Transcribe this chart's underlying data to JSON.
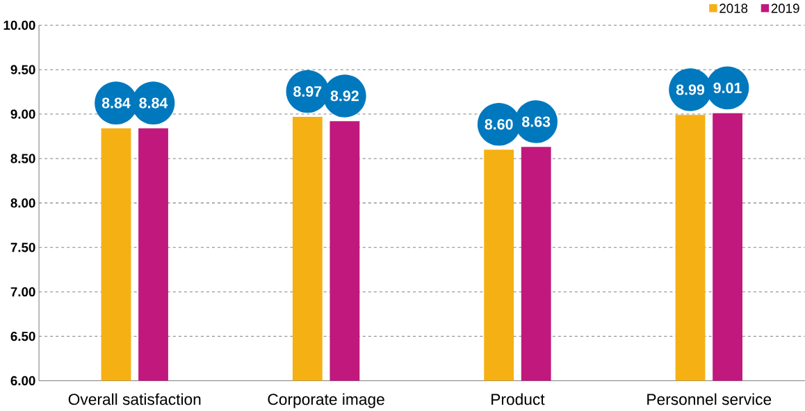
{
  "chart_data": {
    "type": "bar",
    "categories": [
      "Overall satisfaction",
      "Corporate image",
      "Product",
      "Personnel service"
    ],
    "series": [
      {
        "name": "2018",
        "color": "#f5b014",
        "values": [
          8.84,
          8.97,
          8.6,
          8.99
        ],
        "value_labels": [
          "8.84",
          "8.97",
          "8.60",
          "8.99"
        ]
      },
      {
        "name": "2019",
        "color": "#c0187c",
        "values": [
          8.84,
          8.92,
          8.63,
          9.01
        ],
        "value_labels": [
          "8.84",
          "8.92",
          "8.63",
          "9.01"
        ]
      }
    ],
    "ylim": [
      6,
      10
    ],
    "yticks": [
      {
        "value": 6,
        "label": "6.00"
      },
      {
        "value": 6.5,
        "label": "6.50"
      },
      {
        "value": 7,
        "label": "7.00"
      },
      {
        "value": 7.5,
        "label": "7.50"
      },
      {
        "value": 8,
        "label": "8.00"
      },
      {
        "value": 8.5,
        "label": "8.50"
      },
      {
        "value": 9,
        "label": "9.00"
      },
      {
        "value": 9.5,
        "label": "9.50"
      },
      {
        "value": 10,
        "label": "10.00"
      }
    ],
    "grid": "y",
    "legend": "top right"
  }
}
